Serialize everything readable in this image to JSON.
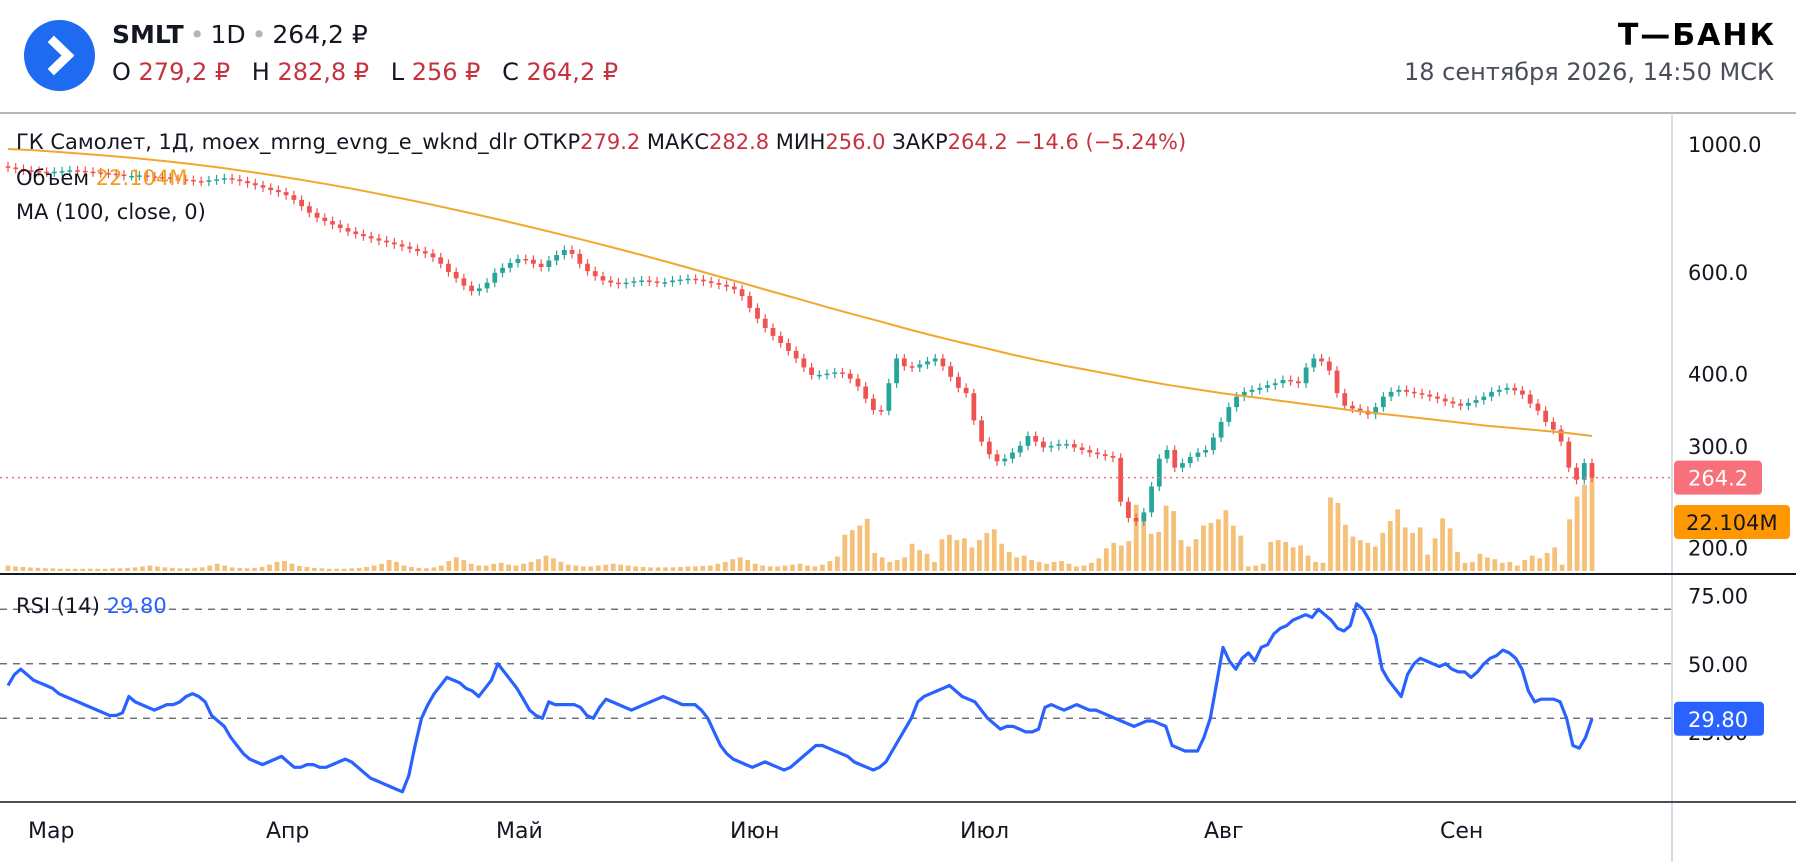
{
  "header": {
    "ticker": "SMLT",
    "interval": "1D",
    "last_price": "264,2 ₽",
    "o_label": "O",
    "o_value": "279,2 ₽",
    "h_label": "H",
    "h_value": "282,8 ₽",
    "l_label": "L",
    "l_value": "256 ₽",
    "c_label": "C",
    "c_value": "264,2 ₽",
    "brand": "Т—БАНК",
    "timestamp": "18 сентября 2026, 14:50 МСК"
  },
  "legend": {
    "title": "ГК Самолет, 1Д, moex_mrng_evng_e_wknd_dlr",
    "open_label": "ОТКР",
    "open_value": "279.2",
    "high_label": "МАКС",
    "high_value": "282.8",
    "low_label": "МИН",
    "low_value": "256.0",
    "close_label": "ЗАКР",
    "close_value": "264.2",
    "change": "−14.6 (−5.24%)",
    "volume_label": "Объем",
    "volume_value": "22.104M",
    "ma_label": "MA (100, close, 0)",
    "rsi_label": "RSI (14)",
    "rsi_value": "29.80"
  },
  "colors": {
    "up": "#26a69a",
    "down": "#ef5350",
    "ma": "#f0a830",
    "volume": "#f5c078",
    "rsi": "#2962ff",
    "price_tag": "#f7707a",
    "volume_tag": "#ff9800",
    "rsi_tag": "#2962ff"
  },
  "chart_data": [
    {
      "type": "candlestick",
      "y_scale": "log",
      "ylim": [
        185,
        1100
      ],
      "y_ticks": [
        "1000.0",
        "600.0",
        "400.0",
        "300.0",
        "200.0"
      ],
      "x_ticks": [
        "Мар",
        "Апр",
        "Май",
        "Июн",
        "Июл",
        "Авг",
        "Сен"
      ],
      "last_price_tag": "264.2",
      "close_series": [
        910,
        905,
        900,
        898,
        895,
        893,
        895,
        897,
        900,
        898,
        895,
        893,
        890,
        888,
        885,
        880,
        880,
        882,
        878,
        876,
        875,
        870,
        868,
        866,
        862,
        860,
        865,
        868,
        872,
        868,
        862,
        855,
        848,
        840,
        832,
        825,
        815,
        800,
        780,
        760,
        745,
        735,
        725,
        715,
        705,
        698,
        692,
        686,
        680,
        675,
        670,
        664,
        658,
        652,
        646,
        636,
        620,
        600,
        585,
        568,
        556,
        562,
        575,
        598,
        610,
        622,
        632,
        630,
        620,
        612,
        628,
        642,
        655,
        645,
        620,
        602,
        590,
        580,
        575,
        572,
        575,
        578,
        580,
        578,
        575,
        576,
        580,
        582,
        584,
        582,
        578,
        574,
        570,
        566,
        560,
        545,
        520,
        498,
        480,
        465,
        452,
        438,
        425,
        410,
        398,
        398,
        400,
        402,
        400,
        392,
        380,
        362,
        346,
        345,
        385,
        425,
        412,
        410,
        415,
        420,
        425,
        412,
        395,
        378,
        370,
        332,
        305,
        290,
        282,
        285,
        292,
        300,
        312,
        305,
        298,
        300,
        302,
        302,
        298,
        295,
        292,
        290,
        288,
        286,
        240,
        225,
        222,
        230,
        255,
        285,
        295,
        275,
        280,
        287,
        292,
        295,
        310,
        330,
        350,
        365,
        372,
        375,
        378,
        382,
        385,
        390,
        388,
        385,
        410,
        425,
        420,
        405,
        370,
        352,
        348,
        345,
        340,
        350,
        365,
        372,
        375,
        372,
        370,
        368,
        365,
        362,
        358,
        355,
        352,
        356,
        360,
        365,
        372,
        375,
        378,
        374,
        368,
        355,
        345,
        330,
        320,
        305,
        275,
        262,
        280,
        264.2
      ],
      "ma100_series": [
        980,
        975,
        968,
        960,
        952,
        943,
        933,
        922,
        910,
        897,
        883,
        868,
        853,
        837,
        820,
        803,
        786,
        768,
        750,
        732,
        714,
        696,
        678,
        660,
        642,
        624,
        606,
        588,
        571,
        554,
        538,
        522,
        507,
        493,
        479,
        466,
        454,
        443,
        432,
        422,
        413,
        405,
        397,
        389,
        382,
        376,
        370,
        365,
        360,
        355,
        350,
        345,
        341,
        337,
        333,
        329,
        325,
        322,
        319,
        316,
        312
      ],
      "volume_series_millions": [
        1.2,
        1.0,
        0.9,
        0.8,
        0.7,
        0.6,
        0.6,
        0.5,
        0.5,
        0.5,
        0.5,
        0.5,
        0.5,
        0.5,
        0.6,
        0.6,
        0.7,
        0.8,
        1.0,
        1.2,
        1.0,
        0.8,
        0.7,
        0.6,
        0.6,
        0.7,
        0.8,
        1.2,
        1.6,
        1.2,
        0.8,
        0.7,
        0.6,
        0.7,
        0.9,
        1.4,
        2.0,
        2.2,
        1.6,
        1.1,
        0.9,
        0.7,
        0.6,
        0.5,
        0.5,
        0.5,
        0.6,
        0.7,
        0.9,
        1.2,
        1.6,
        2.4,
        2.0,
        1.2,
        0.9,
        0.7,
        0.6,
        0.8,
        1.2,
        2.2,
        3.0,
        2.4,
        1.6,
        1.2,
        1.2,
        1.6,
        1.8,
        1.4,
        1.2,
        1.6,
        2.0,
        2.6,
        3.4,
        2.8,
        2.0,
        1.4,
        1.2,
        1.0,
        1.0,
        1.2,
        1.4,
        1.6,
        1.4,
        1.2,
        1.0,
        0.9,
        0.8,
        0.8,
        0.8,
        0.8,
        0.9,
        1.0,
        1.0,
        1.1,
        1.2,
        1.6,
        2.0,
        2.6,
        3.0,
        2.4,
        1.6,
        1.2,
        1.0,
        1.0,
        1.2,
        1.4,
        1.6,
        1.2,
        1.0,
        1.4,
        2.2,
        3.2,
        8.0,
        9.0,
        10.0,
        11.5,
        4.0,
        3.0,
        2.0,
        2.4,
        3.0,
        6.0,
        4.6,
        3.8,
        2.0,
        7.0,
        8.0,
        6.8,
        7.2,
        5.2,
        6.8,
        8.4,
        9.2,
        6.0,
        4.2,
        3.0,
        3.4,
        2.4,
        2.0,
        1.6,
        2.0,
        2.2,
        1.6,
        1.0,
        1.2,
        1.8,
        2.8,
        5.0,
        6.2,
        5.6,
        6.6,
        14.6,
        12.2,
        8.2,
        8.6,
        14.4,
        13.2,
        6.8,
        5.4,
        7.0,
        10.0,
        10.6,
        11.4,
        13.4,
        10.0,
        7.8,
        1.0,
        1.2,
        1.6,
        6.4,
        6.8,
        6.4,
        5.2,
        5.6,
        3.4,
        2.0,
        1.8,
        16.2,
        15.0,
        10.2,
        7.6,
        6.8,
        6.2,
        5.4,
        8.4,
        11.0,
        13.6,
        9.6,
        8.4,
        9.6,
        3.6,
        7.2,
        11.6,
        9.4,
        4.2,
        1.8,
        2.0,
        3.8,
        3.0,
        2.6,
        1.8,
        2.0,
        1.2,
        2.4,
        3.4,
        2.8,
        4.0,
        5.2,
        1.4,
        11.4,
        16.4,
        19.0,
        22.104
      ]
    },
    {
      "type": "line",
      "name": "RSI (14)",
      "ylim": [
        0,
        80
      ],
      "y_ticks": [
        "75.00",
        "50.00",
        "25.00"
      ],
      "reference_lines": [
        70,
        50,
        30
      ],
      "last_value_tag": "29.80",
      "values": [
        42,
        46,
        48,
        46,
        44,
        43,
        42,
        41,
        39,
        38,
        37,
        36,
        35,
        34,
        33,
        32,
        31,
        31,
        32,
        38,
        36,
        35,
        34,
        33,
        34,
        35,
        35,
        36,
        38,
        39,
        38,
        36,
        31,
        29,
        27,
        23,
        20,
        17,
        15,
        14,
        13,
        14,
        15,
        16,
        14,
        12,
        12,
        13,
        13,
        12,
        12,
        13,
        14,
        15,
        14,
        12,
        10,
        8,
        7,
        6,
        5,
        4,
        3,
        9,
        20,
        30,
        35,
        39,
        42,
        45,
        44,
        43,
        41,
        40,
        38,
        41,
        44,
        50,
        47,
        44,
        41,
        37,
        33,
        31,
        30,
        36,
        35,
        35,
        35,
        35,
        34,
        31,
        30,
        34,
        37,
        36,
        35,
        34,
        33,
        34,
        35,
        36,
        37,
        38,
        37,
        36,
        35,
        35,
        35,
        33,
        30,
        25,
        20,
        17,
        15,
        14,
        13,
        12,
        13,
        14,
        13,
        12,
        11,
        12,
        14,
        16,
        18,
        20,
        20,
        19,
        18,
        17,
        16,
        14,
        13,
        12,
        11,
        12,
        14,
        18,
        22,
        26,
        30,
        36,
        38,
        39,
        40,
        41,
        42,
        40,
        38,
        37,
        36,
        33,
        30,
        28,
        26,
        27,
        27,
        26,
        25,
        25,
        26,
        34,
        35,
        34,
        33,
        34,
        35,
        34,
        33,
        33,
        32,
        31,
        30,
        29,
        28,
        27,
        28,
        29,
        29,
        28,
        27,
        20,
        19,
        18,
        18,
        18,
        23,
        30,
        43,
        56,
        51,
        48,
        52,
        54,
        51,
        56,
        57,
        61,
        63,
        64,
        66,
        67,
        68,
        67,
        70,
        68,
        66,
        63,
        62,
        64,
        72,
        70,
        66,
        60,
        48,
        44,
        41,
        38,
        46,
        50,
        52,
        51,
        50,
        49,
        50,
        48,
        47,
        47,
        45,
        47,
        50,
        52,
        53,
        55,
        54,
        52,
        48,
        40,
        36,
        37,
        37,
        37,
        36,
        30,
        20,
        19,
        23,
        29.8
      ]
    }
  ]
}
